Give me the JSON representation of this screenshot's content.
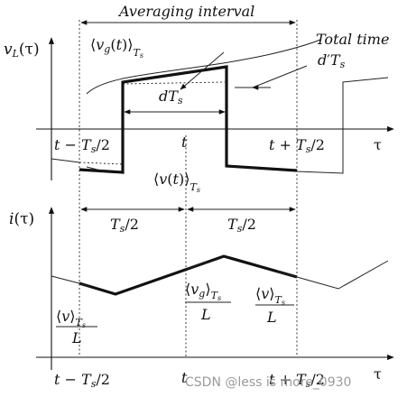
{
  "top": {
    "ylabel": "vL(τ)",
    "header": "Averaging interval",
    "vg_avg": "⟨vg(t)⟩Ts",
    "total_time": "Total time",
    "dprime_ts": "d′Ts",
    "d_ts": "dTs",
    "v_avg": "⟨v(t)⟩Ts",
    "tick_left": "t − Ts/2",
    "tick_mid": "t",
    "tick_right": "t + Ts/2",
    "xaxis": "τ"
  },
  "bottom": {
    "ylabel": "i(τ)",
    "half_left": "Ts/2",
    "half_right": "Ts/2",
    "slope_left_num": "⟨v⟩Ts",
    "slope_left_den": "L",
    "slope_mid_num": "⟨vg⟩Ts",
    "slope_mid_den": "L",
    "slope_right_num": "⟨v⟩Ts",
    "slope_right_den": "L",
    "tick_left": "t − Ts/2",
    "tick_mid": "t",
    "tick_right": "t + Ts/2",
    "xaxis": "τ"
  },
  "watermark": "CSDN @less is more_0930"
}
